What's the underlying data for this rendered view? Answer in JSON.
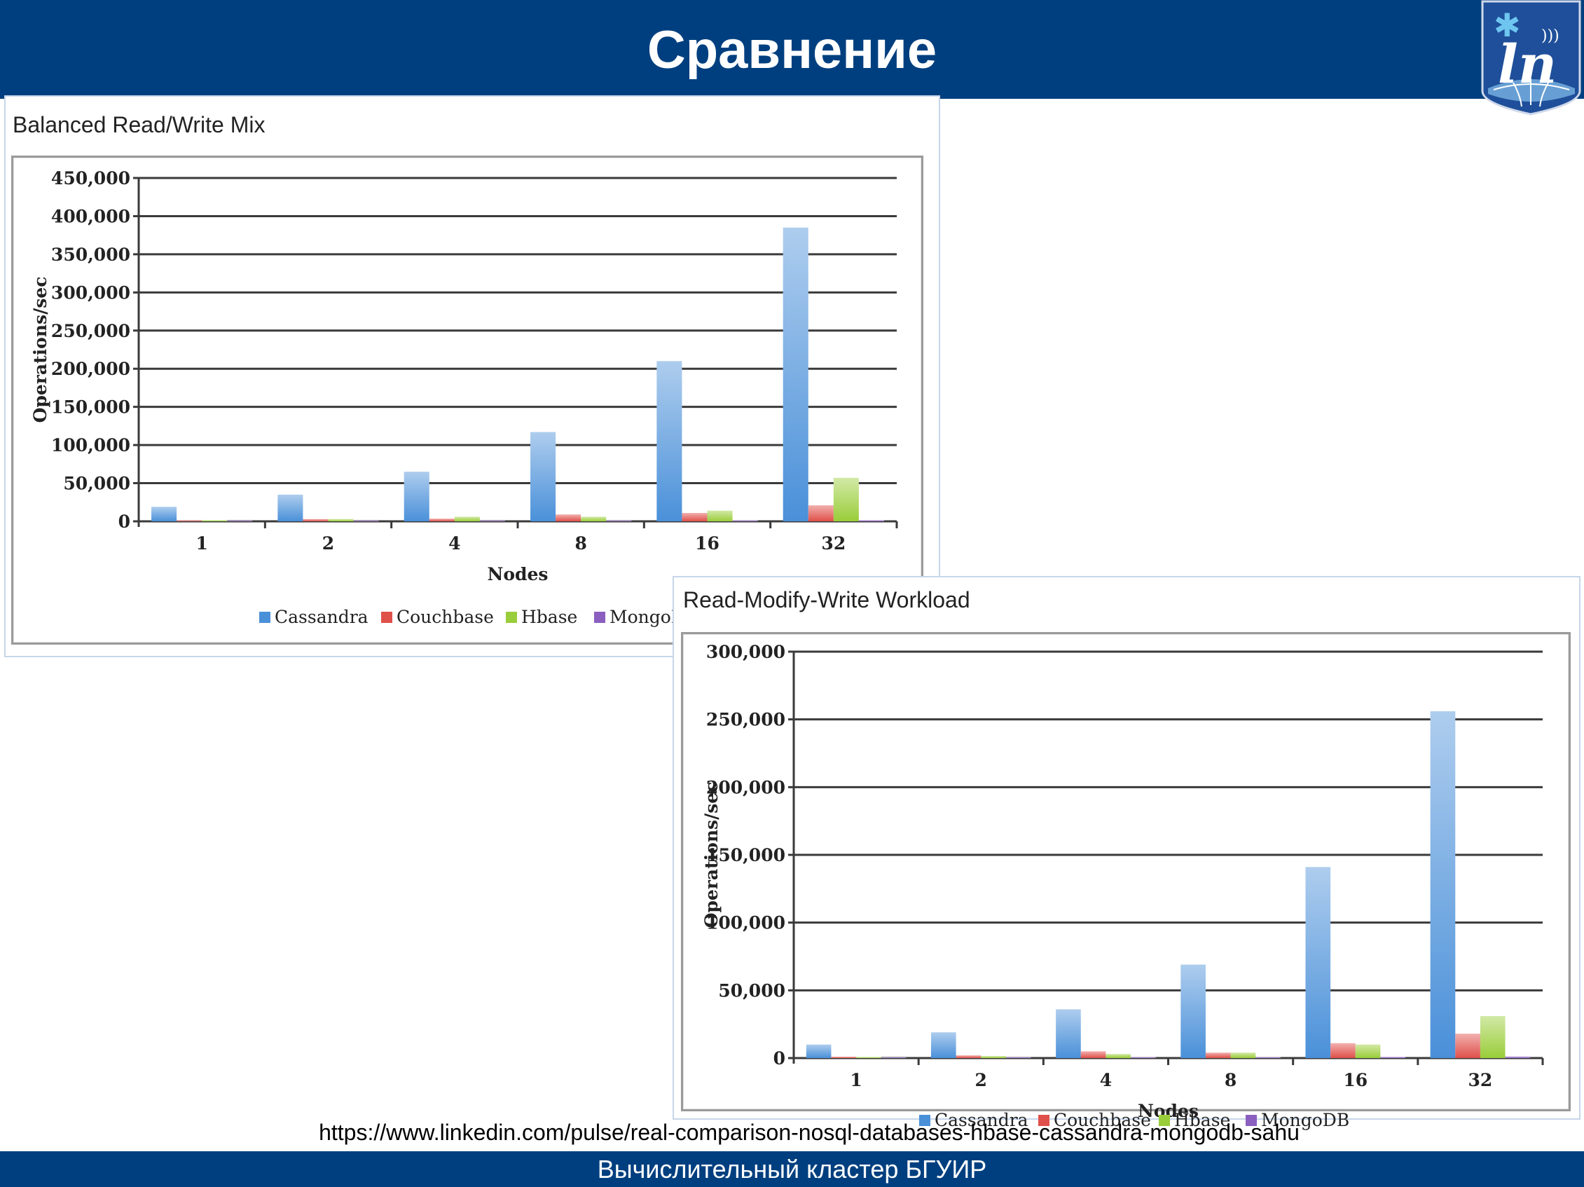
{
  "slide": {
    "title": "Сравнение",
    "footer": "Вычислительный кластер БГУИР",
    "source_url": "https://www.linkedin.com/pulse/real-comparison-nosql-databases-hbase-cassandra-mongodb-sahu",
    "colors": {
      "header_bg": "#003f7f",
      "footer_bg": "#003f7f",
      "text": "#ffffff"
    },
    "logo_icon": "university-crest-icon"
  },
  "chart_data": [
    {
      "type": "bar",
      "title": "Balanced Read/Write Mix",
      "xlabel": "Nodes",
      "ylabel": "Operations/sec",
      "ylim": [
        0,
        450000
      ],
      "yticks": [
        "450,000",
        "400,000",
        "350,000",
        "300,000",
        "250,000",
        "200,000",
        "150,000",
        "100,000",
        "50,000",
        "0"
      ],
      "categories": [
        "1",
        "2",
        "4",
        "8",
        "16",
        "32"
      ],
      "grid": true,
      "legend": "bottom",
      "series": [
        {
          "name": "Cassandra",
          "color": "#4a90d9",
          "values": [
            19000,
            35000,
            65000,
            117000,
            210000,
            385000
          ]
        },
        {
          "name": "Couchbase",
          "color": "#e0504a",
          "values": [
            1200,
            3000,
            3500,
            9000,
            11000,
            21000
          ]
        },
        {
          "name": "Hbase",
          "color": "#9acd3a",
          "values": [
            1500,
            3000,
            6000,
            6000,
            14000,
            57000
          ]
        },
        {
          "name": "MongoDB",
          "color": "#8b5fbf",
          "values": [
            500,
            800,
            800,
            1000,
            1200,
            1500
          ]
        }
      ]
    },
    {
      "type": "bar",
      "title": "Read-Modify-Write Workload",
      "xlabel": "Nodes",
      "ylabel": "Operations/sec",
      "ylim": [
        0,
        300000
      ],
      "yticks": [
        "300,000",
        "250,000",
        "200,000",
        "150,000",
        "100,000",
        "50,000",
        "0"
      ],
      "categories": [
        "1",
        "2",
        "4",
        "8",
        "16",
        "32"
      ],
      "grid": true,
      "legend": "bottom",
      "series": [
        {
          "name": "Cassandra",
          "color": "#4a90d9",
          "values": [
            10000,
            19000,
            36000,
            69000,
            141000,
            256000
          ]
        },
        {
          "name": "Couchbase",
          "color": "#e0504a",
          "values": [
            1000,
            2000,
            5000,
            4000,
            11000,
            18000
          ]
        },
        {
          "name": "Hbase",
          "color": "#9acd3a",
          "values": [
            800,
            1500,
            3000,
            4000,
            10000,
            31000
          ]
        },
        {
          "name": "MongoDB",
          "color": "#8b5fbf",
          "values": [
            400,
            600,
            700,
            700,
            900,
            1200
          ]
        }
      ]
    }
  ]
}
